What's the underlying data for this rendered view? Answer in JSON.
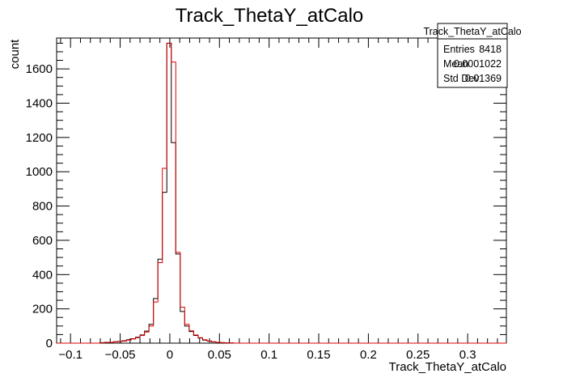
{
  "chart_data": {
    "type": "histogram",
    "title": "Track_ThetaY_atCalo",
    "xlabel": "Track_ThetaY_atCalo",
    "ylabel": "count",
    "xlim": [
      -0.114,
      0.339
    ],
    "ylim": [
      0,
      1780
    ],
    "x_ticks": [
      -0.1,
      -0.05,
      0,
      0.05,
      0.1,
      0.15,
      0.2,
      0.25,
      0.3
    ],
    "x_tick_labels": [
      "−0.1",
      "−0.05",
      "0",
      "0.05",
      "0.1",
      "0.15",
      "0.2",
      "0.25",
      "0.3"
    ],
    "y_ticks": [
      0,
      200,
      400,
      600,
      800,
      1000,
      1200,
      1400,
      1600
    ],
    "y_tick_labels": [
      "0",
      "200",
      "400",
      "600",
      "800",
      "1000",
      "1200",
      "1400",
      "1600"
    ],
    "bin_edges": [
      -0.0705,
      -0.066,
      -0.0615,
      -0.057,
      -0.0525,
      -0.048,
      -0.0435,
      -0.039,
      -0.0345,
      -0.03,
      -0.0255,
      -0.021,
      -0.0165,
      -0.012,
      -0.0075,
      -0.003,
      0.0015,
      0.006,
      0.0105,
      0.015,
      0.0195,
      0.024,
      0.0285,
      0.033,
      0.0375,
      0.042,
      0.0465,
      0.051,
      0.0555,
      0.06,
      0.0645
    ],
    "series": [
      {
        "name": "",
        "color": "#000000",
        "values": [
          3,
          5,
          4,
          8,
          10,
          14,
          20,
          26,
          35,
          48,
          70,
          110,
          260,
          490,
          880,
          1750,
          1170,
          520,
          185,
          100,
          68,
          45,
          30,
          18,
          12,
          7,
          5,
          3,
          2,
          1
        ]
      },
      {
        "name": "",
        "color": "#e00000",
        "values": [
          2,
          4,
          4,
          7,
          9,
          12,
          18,
          24,
          32,
          45,
          65,
          100,
          240,
          470,
          1020,
          1750,
          1640,
          530,
          210,
          110,
          72,
          48,
          32,
          20,
          13,
          8,
          5,
          3,
          2,
          1
        ]
      }
    ],
    "stats_box": {
      "title": "Track_ThetaY_atCalo",
      "rows": [
        {
          "label": "Entries",
          "value": "8418"
        },
        {
          "label": "Mean",
          "value": "0.0001022"
        },
        {
          "label": "Std Dev",
          "value": "0.01369"
        }
      ]
    },
    "grid": false,
    "legend": "none"
  }
}
